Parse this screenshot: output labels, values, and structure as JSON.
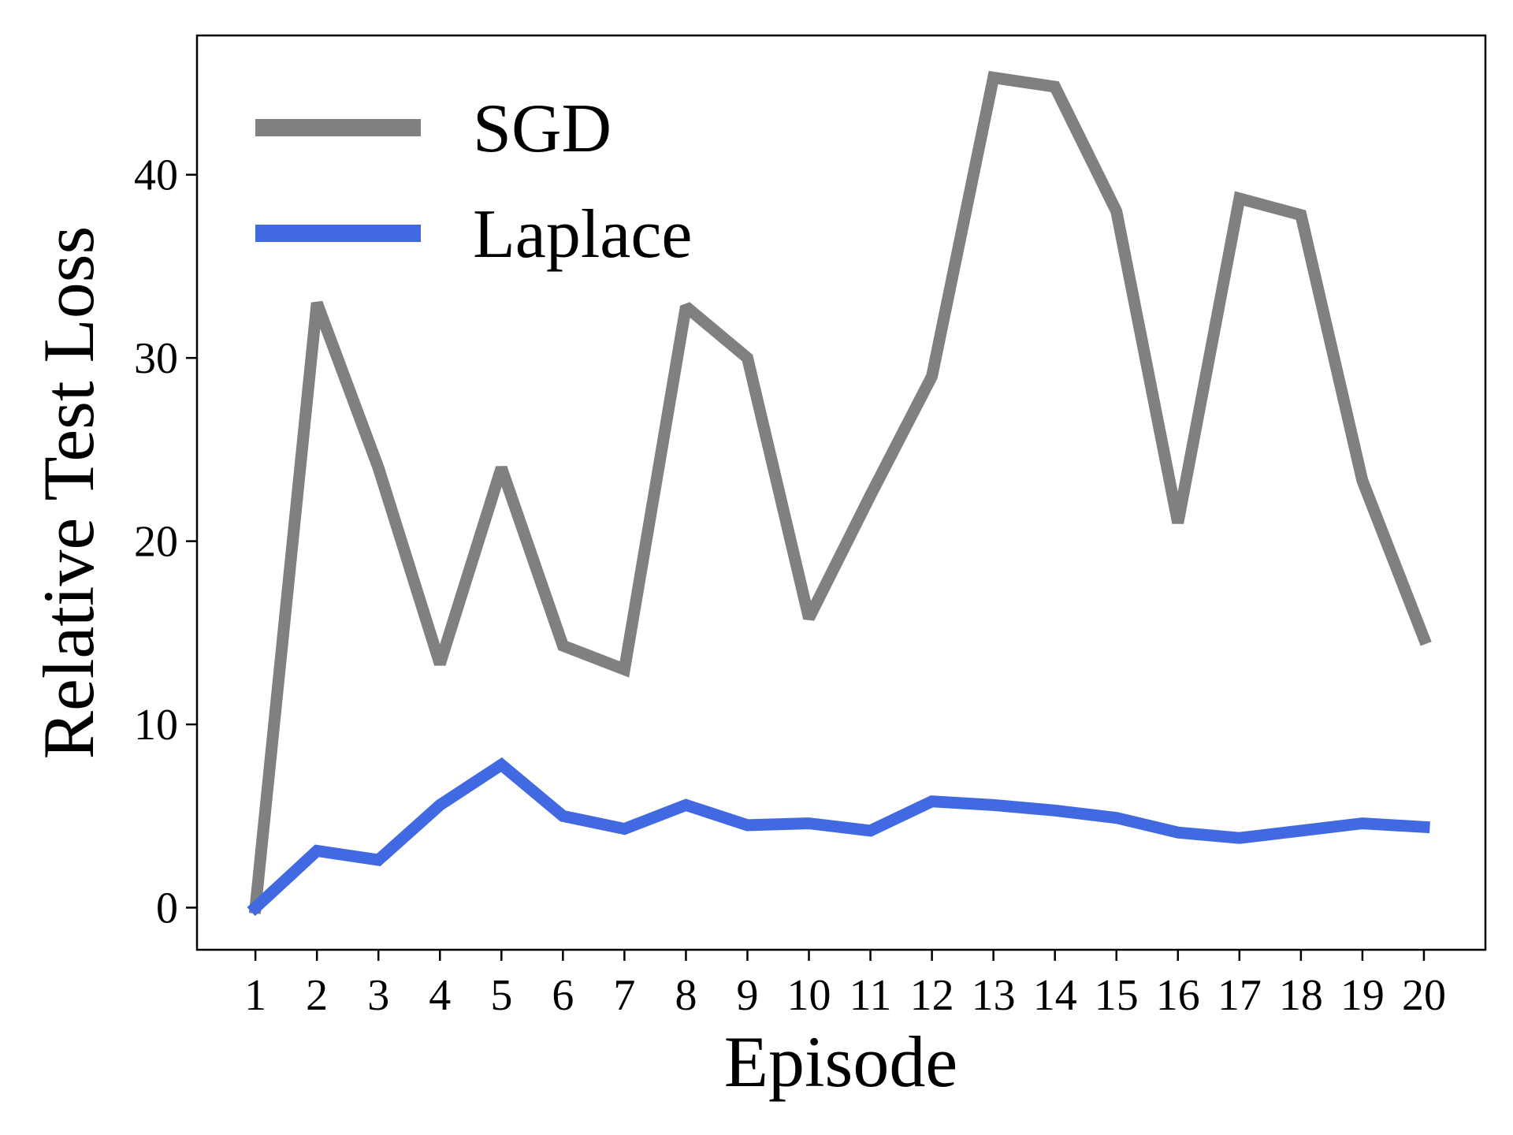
{
  "chart_data": {
    "type": "line",
    "title": "",
    "xlabel": "Episode",
    "ylabel": "Relative Test Loss",
    "x": [
      1,
      2,
      3,
      4,
      5,
      6,
      7,
      8,
      9,
      10,
      11,
      12,
      13,
      14,
      15,
      16,
      17,
      18,
      19,
      20
    ],
    "xticks": [
      "1",
      "2",
      "3",
      "4",
      "5",
      "6",
      "7",
      "8",
      "9",
      "10",
      "11",
      "12",
      "13",
      "14",
      "15",
      "16",
      "17",
      "18",
      "19",
      "20"
    ],
    "yticks": [
      0,
      10,
      20,
      30,
      40
    ],
    "xlim": [
      0.05,
      21.0
    ],
    "ylim": [
      -2.3,
      47.6
    ],
    "grid": false,
    "legend_position": "top-left",
    "series": [
      {
        "name": "SGD",
        "color": "#808080",
        "values": [
          0,
          33,
          24,
          13.3,
          24,
          14.3,
          13,
          32.8,
          30,
          15.8,
          22.5,
          29,
          45.3,
          44.8,
          38,
          21,
          38.7,
          37.8,
          23.3,
          14.7
        ]
      },
      {
        "name": "Laplace",
        "color": "#4169E1",
        "values": [
          0,
          3.1,
          2.6,
          5.6,
          7.8,
          5.0,
          4.3,
          5.6,
          4.5,
          4.6,
          4.2,
          5.8,
          5.6,
          5.3,
          4.9,
          4.1,
          3.8,
          4.2,
          4.6,
          4.4
        ]
      }
    ]
  }
}
